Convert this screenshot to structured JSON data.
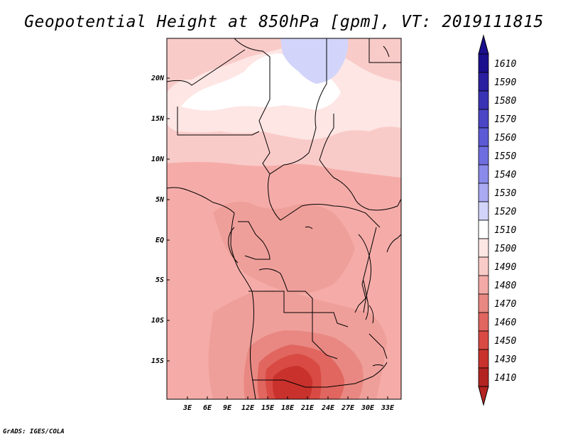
{
  "title": "Geopotential Height at 850hPa [gpm], VT: 2019111815",
  "footer": "GrADS: IGES/COLA",
  "map": {
    "lat_labels": [
      "20N",
      "15N",
      "10N",
      "5N",
      "EQ",
      "5S",
      "10S",
      "15S"
    ],
    "lon_labels": [
      "3E",
      "6E",
      "9E",
      "12E",
      "15E",
      "18E",
      "21E",
      "24E",
      "27E",
      "30E",
      "33E"
    ]
  },
  "colorbar": {
    "labels": [
      "1610",
      "1590",
      "1580",
      "1570",
      "1560",
      "1550",
      "1540",
      "1530",
      "1520",
      "1510",
      "1500",
      "1490",
      "1480",
      "1470",
      "1460",
      "1450",
      "1430",
      "1410"
    ],
    "colors": [
      "#1a0f8c",
      "#2a1fa0",
      "#3a32b4",
      "#4a46c6",
      "#5c5ad4",
      "#6f6ee0",
      "#8a8aea",
      "#a9aaf2",
      "#d2d4fa",
      "#ffffff",
      "#fde6e4",
      "#f9cbc8",
      "#f3aaa6",
      "#e98882",
      "#e0665f",
      "#d84a43",
      "#c9322c",
      "#b32420"
    ]
  }
}
